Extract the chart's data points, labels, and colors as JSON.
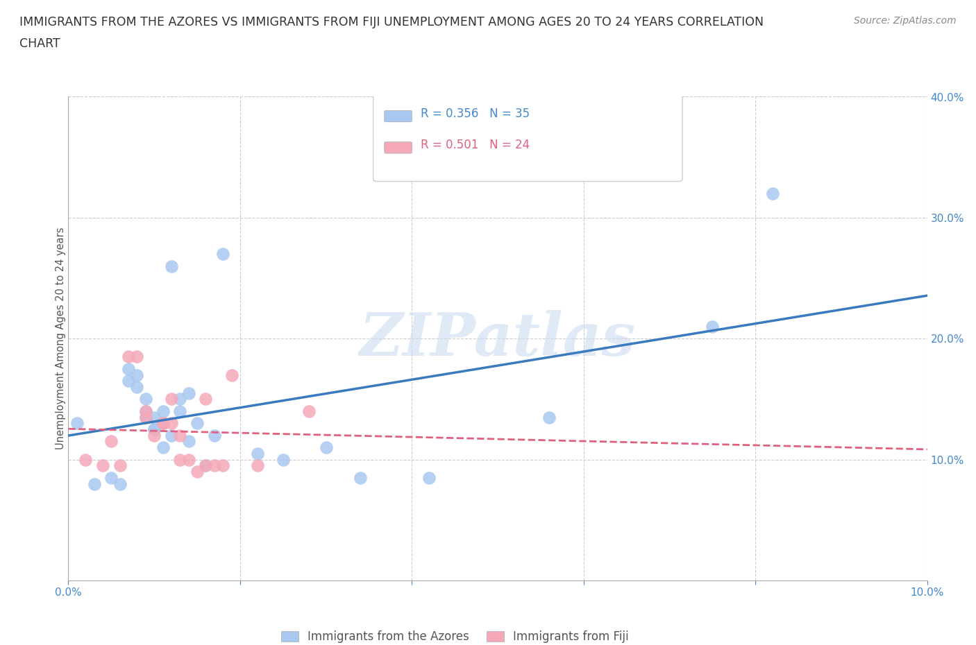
{
  "title_line1": "IMMIGRANTS FROM THE AZORES VS IMMIGRANTS FROM FIJI UNEMPLOYMENT AMONG AGES 20 TO 24 YEARS CORRELATION",
  "title_line2": "CHART",
  "source": "Source: ZipAtlas.com",
  "ylabel": "Unemployment Among Ages 20 to 24 years",
  "watermark": "ZIPatlas",
  "legend_label1": "Immigrants from the Azores",
  "legend_label2": "Immigrants from Fiji",
  "r1": 0.356,
  "n1": 35,
  "r2": 0.501,
  "n2": 24,
  "color_azores": "#a8c8f0",
  "color_fiji": "#f5a8b8",
  "color_azores_line": "#3a7abf",
  "color_fiji_line": "#e06080",
  "color_tick": "#4488cc",
  "xlim": [
    0.0,
    0.1
  ],
  "ylim": [
    0.0,
    0.4
  ],
  "xticks": [
    0.0,
    0.02,
    0.04,
    0.06,
    0.08,
    0.1
  ],
  "yticks": [
    0.0,
    0.1,
    0.2,
    0.3,
    0.4
  ],
  "xtick_labels": [
    "0.0%",
    "",
    "",
    "",
    "",
    "10.0%"
  ],
  "ytick_labels": [
    "",
    "10.0%",
    "20.0%",
    "30.0%",
    "40.0%"
  ],
  "azores_x": [
    0.001,
    0.003,
    0.005,
    0.006,
    0.007,
    0.007,
    0.008,
    0.008,
    0.009,
    0.009,
    0.009,
    0.01,
    0.01,
    0.01,
    0.011,
    0.011,
    0.011,
    0.012,
    0.012,
    0.013,
    0.013,
    0.014,
    0.014,
    0.015,
    0.016,
    0.017,
    0.018,
    0.022,
    0.025,
    0.03,
    0.034,
    0.042,
    0.056,
    0.075,
    0.082
  ],
  "azores_y": [
    0.13,
    0.08,
    0.085,
    0.08,
    0.165,
    0.175,
    0.17,
    0.16,
    0.14,
    0.135,
    0.15,
    0.125,
    0.125,
    0.135,
    0.11,
    0.13,
    0.14,
    0.12,
    0.26,
    0.14,
    0.15,
    0.115,
    0.155,
    0.13,
    0.095,
    0.12,
    0.27,
    0.105,
    0.1,
    0.11,
    0.085,
    0.085,
    0.135,
    0.21,
    0.32
  ],
  "fiji_x": [
    0.002,
    0.004,
    0.005,
    0.006,
    0.007,
    0.008,
    0.009,
    0.009,
    0.01,
    0.011,
    0.011,
    0.012,
    0.012,
    0.013,
    0.013,
    0.014,
    0.015,
    0.016,
    0.016,
    0.017,
    0.018,
    0.019,
    0.022,
    0.028
  ],
  "fiji_y": [
    0.1,
    0.095,
    0.115,
    0.095,
    0.185,
    0.185,
    0.135,
    0.14,
    0.12,
    0.13,
    0.13,
    0.13,
    0.15,
    0.1,
    0.12,
    0.1,
    0.09,
    0.095,
    0.15,
    0.095,
    0.095,
    0.17,
    0.095,
    0.14
  ],
  "background_color": "#ffffff",
  "grid_color": "#cccccc",
  "title_fontsize": 12.5,
  "axis_label_fontsize": 10.5,
  "tick_fontsize": 11,
  "legend_fontsize": 12,
  "source_fontsize": 10
}
